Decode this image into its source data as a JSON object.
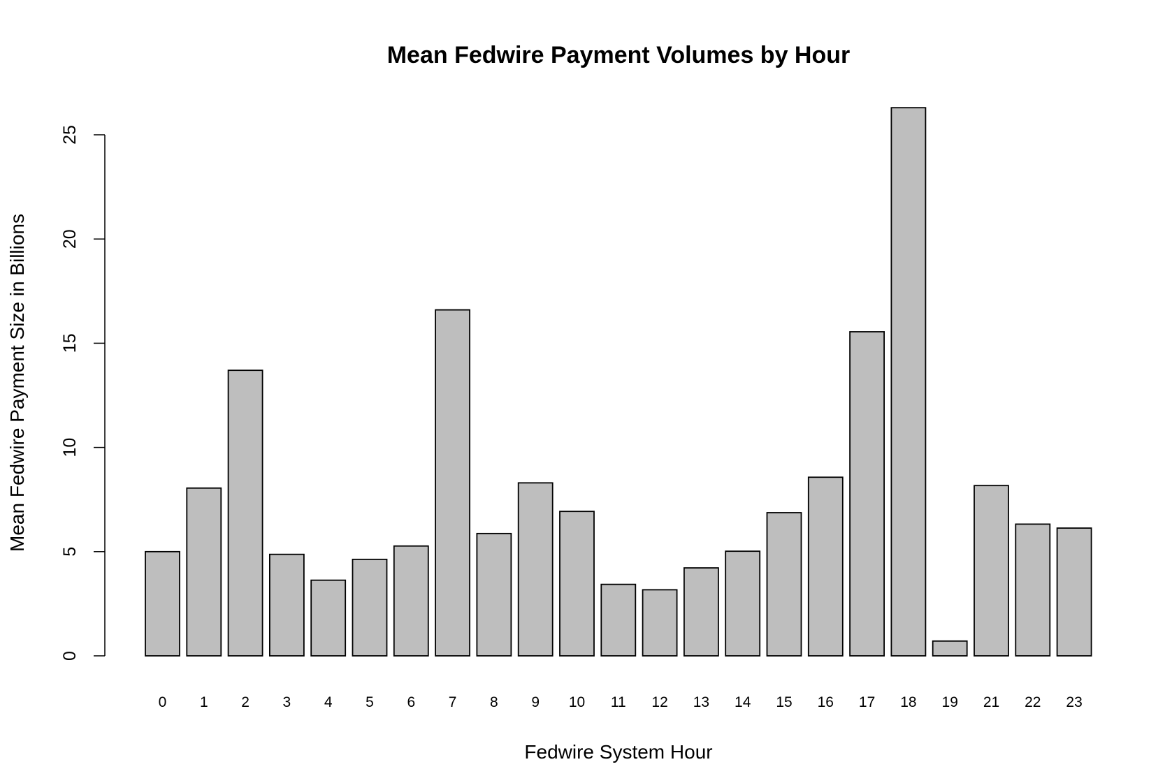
{
  "chart_data": {
    "type": "bar",
    "title": "Mean Fedwire Payment Volumes by Hour",
    "xlabel": "Fedwire System Hour",
    "ylabel": "Mean Fedwire Payment Size in Billions",
    "categories": [
      "0",
      "1",
      "2",
      "3",
      "4",
      "5",
      "6",
      "7",
      "8",
      "9",
      "10",
      "11",
      "12",
      "13",
      "14",
      "15",
      "16",
      "17",
      "18",
      "19",
      "21",
      "22",
      "23"
    ],
    "values": [
      5.0,
      8.05,
      13.7,
      4.87,
      3.63,
      4.63,
      5.27,
      16.6,
      5.87,
      8.3,
      6.93,
      3.43,
      3.17,
      4.22,
      5.02,
      6.87,
      8.57,
      15.55,
      26.3,
      0.71,
      8.17,
      6.32,
      6.13
    ],
    "ylim": [
      0,
      25
    ],
    "yticks": [
      "0",
      "5",
      "10",
      "15",
      "20",
      "25"
    ],
    "grid": false,
    "colors": {
      "bar_fill": "#bebebe",
      "bar_stroke": "#000000",
      "axis": "#000000"
    }
  }
}
